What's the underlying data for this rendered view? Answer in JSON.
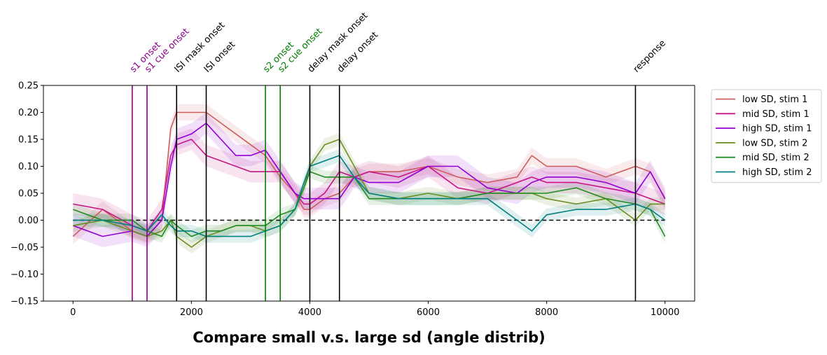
{
  "chart_data": {
    "type": "line",
    "title": "Compare small v.s. large sd (angle distrib)",
    "xlabel": "",
    "ylabel": "",
    "xlim": [
      -500,
      10500
    ],
    "ylim": [
      -0.15,
      0.25
    ],
    "xticks": [
      0,
      2000,
      4000,
      6000,
      8000,
      10000
    ],
    "xtick_labels": [
      "0",
      "2000",
      "4000",
      "6000",
      "8000",
      "10000"
    ],
    "yticks": [
      -0.15,
      -0.1,
      -0.05,
      0.0,
      0.05,
      0.1,
      0.15,
      0.2,
      0.25
    ],
    "ytick_labels": [
      "−0.15",
      "−0.10",
      "−0.05",
      "0.00",
      "0.05",
      "0.10",
      "0.15",
      "0.20",
      "0.25"
    ],
    "grid": false,
    "legend_position": "outside-right",
    "zero_line": {
      "y": 0,
      "style": "dashed",
      "color": "#000000"
    },
    "events": [
      {
        "x": 1000,
        "label": "s1 onset",
        "color": "#8b008b"
      },
      {
        "x": 1250,
        "label": "s1 cue onset",
        "color": "#8b008b"
      },
      {
        "x": 1750,
        "label": "ISI mask onset",
        "color": "#000000"
      },
      {
        "x": 2250,
        "label": "ISI onset",
        "color": "#000000"
      },
      {
        "x": 3250,
        "label": "s2 onset",
        "color": "#008000"
      },
      {
        "x": 3500,
        "label": "s2 cue onset",
        "color": "#008000"
      },
      {
        "x": 4000,
        "label": "delay mask onset",
        "color": "#000000"
      },
      {
        "x": 4500,
        "label": "delay onset",
        "color": "#000000"
      },
      {
        "x": 9500,
        "label": "response",
        "color": "#000000"
      }
    ],
    "x": [
      0,
      500,
      1000,
      1250,
      1500,
      1650,
      1750,
      2000,
      2250,
      2500,
      2750,
      3000,
      3250,
      3500,
      3750,
      3900,
      4000,
      4250,
      4500,
      4750,
      5000,
      5500,
      6000,
      6500,
      7000,
      7500,
      7750,
      8000,
      8500,
      9000,
      9500,
      9750,
      10000
    ],
    "series": [
      {
        "name": "low SD, stim 1",
        "color": "#cd5c5c",
        "band": 0.015,
        "values": [
          -0.03,
          0.02,
          -0.02,
          -0.03,
          0.0,
          0.17,
          0.2,
          0.2,
          0.2,
          0.18,
          0.16,
          0.14,
          0.12,
          0.08,
          0.05,
          0.02,
          0.02,
          0.04,
          0.05,
          0.08,
          0.09,
          0.09,
          0.1,
          0.08,
          0.07,
          0.08,
          0.12,
          0.1,
          0.1,
          0.08,
          0.1,
          0.09,
          0.04
        ]
      },
      {
        "name": "mid SD, stim 1",
        "color": "#c71585",
        "band": 0.02,
        "values": [
          0.03,
          0.02,
          -0.01,
          -0.02,
          0.02,
          0.12,
          0.14,
          0.15,
          0.12,
          0.11,
          0.1,
          0.09,
          0.09,
          0.09,
          0.05,
          0.03,
          0.03,
          0.05,
          0.09,
          0.08,
          0.09,
          0.08,
          0.1,
          0.06,
          0.05,
          0.07,
          0.08,
          0.07,
          0.07,
          0.06,
          0.05,
          0.04,
          0.03
        ]
      },
      {
        "name": "high SD, stim 1",
        "color": "#9400d3",
        "band": 0.02,
        "values": [
          -0.01,
          -0.03,
          -0.02,
          -0.03,
          0.0,
          0.1,
          0.15,
          0.16,
          0.18,
          0.15,
          0.12,
          0.12,
          0.13,
          0.09,
          0.05,
          0.04,
          0.04,
          0.04,
          0.04,
          0.08,
          0.07,
          0.07,
          0.1,
          0.1,
          0.06,
          0.05,
          0.07,
          0.08,
          0.08,
          0.07,
          0.05,
          0.09,
          0.04
        ]
      },
      {
        "name": "low SD, stim 2",
        "color": "#6b8e23",
        "band": 0.012,
        "values": [
          -0.01,
          0.0,
          -0.02,
          -0.03,
          -0.02,
          0.0,
          -0.03,
          -0.05,
          -0.03,
          -0.02,
          -0.01,
          -0.01,
          -0.02,
          -0.01,
          0.02,
          0.06,
          0.1,
          0.14,
          0.15,
          0.1,
          0.05,
          0.04,
          0.05,
          0.04,
          0.05,
          0.05,
          0.05,
          0.04,
          0.03,
          0.04,
          0.0,
          0.03,
          0.03
        ]
      },
      {
        "name": "mid SD, stim 2",
        "color": "#228b22",
        "band": 0.012,
        "values": [
          0.02,
          0.0,
          0.0,
          -0.02,
          -0.03,
          0.0,
          -0.01,
          -0.03,
          -0.02,
          -0.02,
          -0.01,
          -0.01,
          -0.01,
          0.01,
          0.02,
          0.06,
          0.09,
          0.08,
          0.08,
          0.08,
          0.04,
          0.04,
          0.04,
          0.04,
          0.05,
          0.05,
          0.05,
          0.05,
          0.06,
          0.04,
          0.03,
          0.02,
          -0.03
        ]
      },
      {
        "name": "high SD, stim 2",
        "color": "#008080",
        "band": 0.012,
        "values": [
          0.0,
          0.0,
          -0.01,
          -0.02,
          0.01,
          -0.01,
          -0.02,
          -0.02,
          -0.03,
          -0.03,
          -0.03,
          -0.03,
          -0.02,
          -0.01,
          0.02,
          0.07,
          0.1,
          0.11,
          0.12,
          0.08,
          0.05,
          0.04,
          0.04,
          0.04,
          0.04,
          0.0,
          -0.02,
          0.01,
          0.02,
          0.02,
          0.03,
          0.02,
          0.0
        ]
      }
    ]
  }
}
